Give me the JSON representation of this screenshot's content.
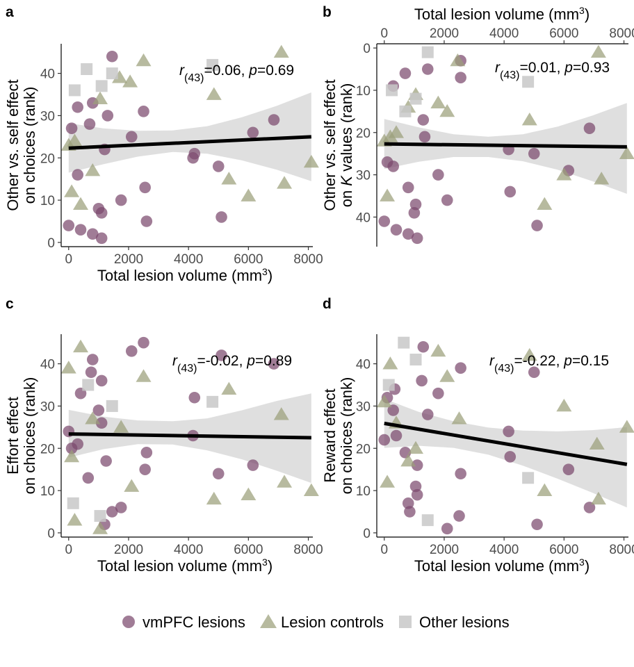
{
  "colors": {
    "vmpfc": "#7b4a6e",
    "controls": "#9ba07a",
    "other": "#c8c8c8",
    "band": "#d9d9d9",
    "line": "#000000"
  },
  "legend": {
    "items": [
      {
        "label": "vmPFC lesions",
        "shape": "circle",
        "color_key": "vmpfc"
      },
      {
        "label": "Lesion controls",
        "shape": "triangle",
        "color_key": "controls"
      },
      {
        "label": "Other lesions",
        "shape": "square",
        "color_key": "other"
      }
    ]
  },
  "chart_data": [
    {
      "panel": "a",
      "type": "scatter",
      "xlabel": "Total lesion volume (mm",
      "xlabel_sup": "3",
      "xlabel_end": ")",
      "ylabel_lines": [
        "Other vs. self effect",
        "on choices (rank)"
      ],
      "x_axis_position": "bottom",
      "y_reversed": false,
      "xlim": [
        -250,
        8150
      ],
      "ylim": [
        -1,
        47
      ],
      "xticks": [
        0,
        2000,
        4000,
        6000,
        8000
      ],
      "yticks": [
        0,
        10,
        20,
        30,
        40
      ],
      "stat": {
        "r_label": "r",
        "df": "(43)",
        "r_value": "=0.06,",
        "p_label": "p",
        "p_value": "=0.69"
      },
      "fit": {
        "x": [
          0,
          8100
        ],
        "y": [
          22.3,
          25.0
        ],
        "band_lo": [
          16.5,
          18.5,
          20.3,
          21.4,
          21.0,
          19.4,
          17.2,
          14.5
        ],
        "band_hi": [
          28.2,
          27.0,
          26.4,
          26.5,
          27.5,
          29.6,
          32.3,
          35.5
        ]
      },
      "series": [
        {
          "name": "vmPFC lesions",
          "color_key": "vmpfc",
          "shape": "circle",
          "x": [
            0,
            100,
            300,
            400,
            700,
            800,
            800,
            1000,
            1100,
            1100,
            1200,
            1300,
            1450,
            1750,
            2100,
            2500,
            2550,
            2600,
            4150,
            4200,
            5000,
            5100,
            6150,
            6850,
            300
          ],
          "y": [
            4,
            27,
            16,
            3,
            28,
            33,
            2,
            8,
            7,
            1,
            22,
            30,
            44,
            10,
            25,
            31,
            13,
            5,
            20,
            21,
            18,
            6,
            26,
            29,
            32
          ]
        },
        {
          "name": "Lesion controls",
          "color_key": "controls",
          "shape": "triangle",
          "x": [
            0,
            100,
            200,
            400,
            800,
            1050,
            1700,
            2050,
            2500,
            4850,
            5350,
            6000,
            7100,
            7200,
            8100
          ],
          "y": [
            23,
            12,
            24,
            9,
            17,
            34,
            39,
            38,
            43,
            35,
            15,
            11,
            45,
            14,
            19
          ]
        },
        {
          "name": "Other lesions",
          "color_key": "other",
          "shape": "square",
          "x": [
            200,
            600,
            1100,
            1450,
            4800
          ],
          "y": [
            36,
            41,
            37,
            40,
            42
          ]
        }
      ]
    },
    {
      "panel": "b",
      "type": "scatter",
      "xlabel": "Total lesion volume (mm",
      "xlabel_sup": "3",
      "xlabel_end": ")",
      "ylabel_lines": [
        "Other vs. self effect",
        "on K values (rank)"
      ],
      "ylabel_italic_word": "K",
      "x_axis_position": "top",
      "y_reversed": true,
      "xlim": [
        -250,
        8150
      ],
      "ylim": [
        -1,
        47
      ],
      "xticks": [
        0,
        2000,
        4000,
        6000,
        8000
      ],
      "yticks": [
        0,
        10,
        20,
        30,
        40
      ],
      "stat": {
        "r_label": "r",
        "df": "(43)",
        "r_value": "=0.01,",
        "p_label": "p",
        "p_value": "=0.93"
      },
      "fit": {
        "x": [
          0,
          8100
        ],
        "y": [
          22.7,
          23.4
        ],
        "band_lo": [
          16.8,
          18.8,
          20.4,
          21.0,
          20.4,
          18.6,
          16.0,
          13.0
        ],
        "band_hi": [
          28.6,
          26.9,
          25.8,
          25.8,
          26.8,
          28.8,
          31.5,
          34.5
        ]
      },
      "series": [
        {
          "name": "vmPFC lesions",
          "color_key": "vmpfc",
          "shape": "circle",
          "x": [
            0,
            100,
            300,
            300,
            400,
            700,
            800,
            800,
            1000,
            1050,
            1100,
            1300,
            1350,
            1450,
            1800,
            2100,
            2550,
            2550,
            4150,
            4200,
            5000,
            5100,
            6150,
            6850
          ],
          "y": [
            41,
            27,
            28,
            9,
            43,
            6,
            33,
            44,
            39,
            37,
            45,
            17,
            21,
            5,
            30,
            36,
            3,
            7,
            24,
            34,
            25,
            42,
            29,
            19
          ]
        },
        {
          "name": "Lesion controls",
          "color_key": "controls",
          "shape": "triangle",
          "x": [
            0,
            100,
            200,
            400,
            800,
            1050,
            1800,
            2100,
            2450,
            4850,
            5350,
            6000,
            7150,
            7250,
            8100
          ],
          "y": [
            22,
            35,
            21,
            20,
            14,
            11,
            13,
            15,
            3,
            17,
            37,
            30,
            1,
            31,
            25
          ]
        },
        {
          "name": "Other lesions",
          "color_key": "other",
          "shape": "square",
          "x": [
            250,
            700,
            1050,
            1450,
            4800
          ],
          "y": [
            10,
            15,
            12,
            1,
            8
          ]
        }
      ]
    },
    {
      "panel": "c",
      "type": "scatter",
      "xlabel": "Total lesion volume (mm",
      "xlabel_sup": "3",
      "xlabel_end": ")",
      "ylabel_lines": [
        "Effort effect",
        "on choices (rank)"
      ],
      "x_axis_position": "bottom",
      "y_reversed": false,
      "xlim": [
        -250,
        8150
      ],
      "ylim": [
        -1,
        47
      ],
      "xticks": [
        0,
        2000,
        4000,
        6000,
        8000
      ],
      "yticks": [
        0,
        10,
        20,
        30,
        40
      ],
      "stat": {
        "r_label": "r",
        "df": "(43)",
        "r_value": "=-0.02,",
        "p_label": "p",
        "p_value": "=0.89"
      },
      "fit": {
        "x": [
          0,
          8100
        ],
        "y": [
          23.4,
          22.5
        ],
        "band_lo": [
          17.8,
          19.8,
          21.0,
          20.9,
          19.5,
          17.4,
          14.7,
          11.8
        ],
        "band_hi": [
          29.1,
          27.5,
          26.6,
          26.4,
          27.1,
          29.0,
          31.2,
          33.0
        ]
      },
      "series": [
        {
          "name": "vmPFC lesions",
          "color_key": "vmpfc",
          "shape": "circle",
          "x": [
            0,
            100,
            300,
            400,
            650,
            750,
            800,
            1000,
            1100,
            1100,
            1200,
            1250,
            1450,
            1750,
            2100,
            2500,
            2550,
            2600,
            4150,
            4200,
            5000,
            5100,
            6150,
            6850
          ],
          "y": [
            24,
            20,
            21,
            33,
            13,
            38,
            41,
            29,
            26,
            36,
            2,
            17,
            5,
            6,
            43,
            45,
            15,
            19,
            23,
            32,
            14,
            42,
            16,
            40
          ]
        },
        {
          "name": "Lesion controls",
          "color_key": "controls",
          "shape": "triangle",
          "x": [
            0,
            100,
            200,
            400,
            800,
            1050,
            1750,
            2100,
            2500,
            4850,
            5350,
            6000,
            7100,
            7200,
            8100
          ],
          "y": [
            39,
            18,
            3,
            44,
            27,
            1,
            25,
            11,
            37,
            8,
            34,
            9,
            28,
            12,
            10
          ]
        },
        {
          "name": "Other lesions",
          "color_key": "other",
          "shape": "square",
          "x": [
            150,
            650,
            1050,
            1450,
            4800
          ],
          "y": [
            7,
            35,
            4,
            30,
            31
          ]
        }
      ]
    },
    {
      "panel": "d",
      "type": "scatter",
      "xlabel": "Total lesion volume (mm",
      "xlabel_sup": "3",
      "xlabel_end": ")",
      "ylabel_lines": [
        "Reward effect",
        "on choices (rank)"
      ],
      "x_axis_position": "bottom",
      "y_reversed": false,
      "xlim": [
        -250,
        8150
      ],
      "ylim": [
        -1,
        47
      ],
      "xticks": [
        0,
        2000,
        4000,
        6000,
        8000
      ],
      "yticks": [
        0,
        10,
        20,
        30,
        40
      ],
      "stat": {
        "r_label": "r",
        "df": "(43)",
        "r_value": "=-0.22,",
        "p_label": "p",
        "p_value": "=0.15"
      },
      "fit": {
        "x": [
          0,
          8100
        ],
        "y": [
          25.9,
          16.2
        ],
        "band_lo": [
          20.1,
          20.6,
          20.1,
          18.5,
          15.9,
          12.8,
          9.5,
          6.0
        ],
        "band_hi": [
          31.7,
          28.6,
          26.4,
          24.9,
          24.2,
          24.0,
          24.3,
          25.0
        ]
      },
      "series": [
        {
          "name": "vmPFC lesions",
          "color_key": "vmpfc",
          "shape": "circle",
          "x": [
            0,
            100,
            300,
            350,
            400,
            700,
            800,
            850,
            1050,
            1100,
            1100,
            1250,
            1300,
            1450,
            1800,
            2100,
            2500,
            2550,
            2550,
            4150,
            4200,
            5000,
            5100,
            6150,
            6850
          ],
          "y": [
            22,
            32,
            29,
            34,
            23,
            19,
            7,
            5,
            11,
            16,
            9,
            36,
            44,
            28,
            33,
            1,
            4,
            39,
            14,
            24,
            18,
            38,
            2,
            15,
            6
          ]
        },
        {
          "name": "Lesion controls",
          "color_key": "controls",
          "shape": "triangle",
          "x": [
            0,
            100,
            200,
            400,
            800,
            1050,
            1800,
            2100,
            2500,
            4850,
            5350,
            6000,
            7100,
            7150,
            8100
          ],
          "y": [
            31,
            12,
            40,
            26,
            17,
            20,
            43,
            37,
            27,
            42,
            10,
            30,
            21,
            8,
            25
          ]
        },
        {
          "name": "Other lesions",
          "color_key": "other",
          "shape": "square",
          "x": [
            150,
            650,
            1050,
            1450,
            4800
          ],
          "y": [
            35,
            45,
            41,
            3,
            13
          ]
        }
      ]
    }
  ]
}
